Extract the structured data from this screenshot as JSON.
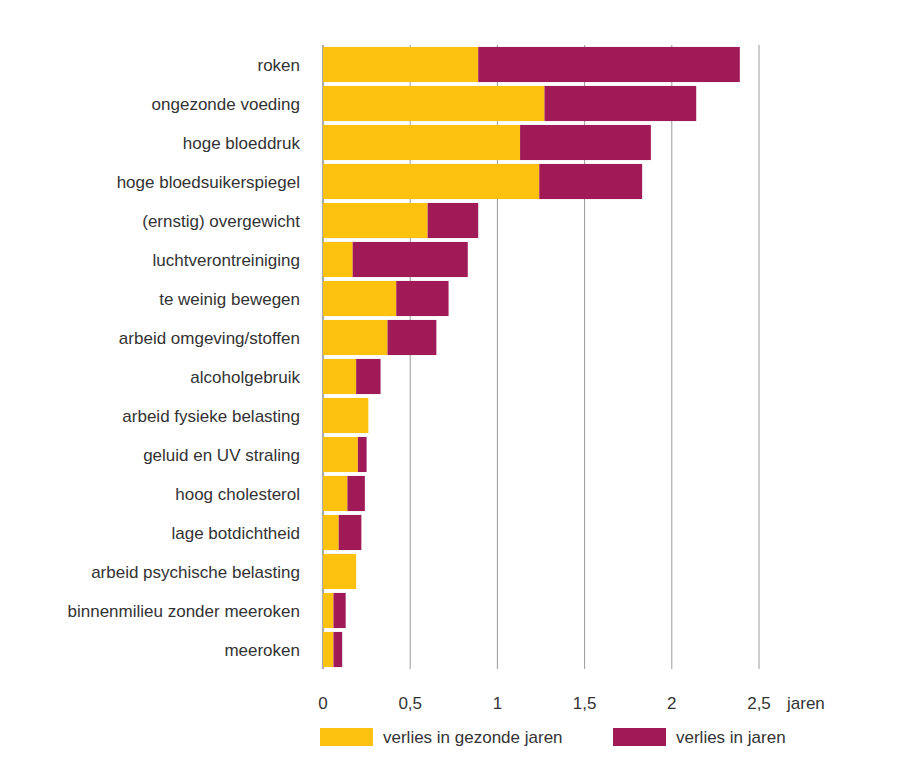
{
  "chart_data": {
    "type": "bar",
    "orientation": "horizontal",
    "stacked": true,
    "grid": true,
    "legend": "bottom",
    "xlabel": "jaren",
    "categories": [
      "roken",
      "ongezonde voeding",
      "hoge bloeddruk",
      "hoge bloedsuikerspiegel",
      "(ernstig) overgewicht",
      "luchtverontreiniging",
      "te weinig bewegen",
      "arbeid omgeving/stoffen",
      "alcoholgebruik",
      "arbeid fysieke belasting",
      "geluid en UV straling",
      "hoog cholesterol",
      "lage botdichtheid",
      "arbeid psychische belasting",
      "binnenmilieu zonder meeroken",
      "meeroken"
    ],
    "series": [
      {
        "name": "verlies in gezonde jaren",
        "color": "#fcc20f",
        "values": [
          0.89,
          1.27,
          1.13,
          1.24,
          0.6,
          0.17,
          0.42,
          0.37,
          0.19,
          0.26,
          0.2,
          0.14,
          0.09,
          0.19,
          0.06,
          0.06
        ]
      },
      {
        "name": "verlies in jaren",
        "color": "#a01a58",
        "values": [
          1.5,
          0.87,
          0.75,
          0.59,
          0.29,
          0.66,
          0.3,
          0.28,
          0.14,
          0,
          0.05,
          0.1,
          0.13,
          0,
          0.07,
          0.05
        ]
      }
    ],
    "xlim": [
      0,
      2.5
    ],
    "xticks": [
      0,
      {
        "value": 0.5,
        "label": "0,5"
      },
      1,
      {
        "value": 1.5,
        "label": "1,5"
      },
      2,
      {
        "value": 2.5,
        "label": "2,5"
      }
    ]
  }
}
